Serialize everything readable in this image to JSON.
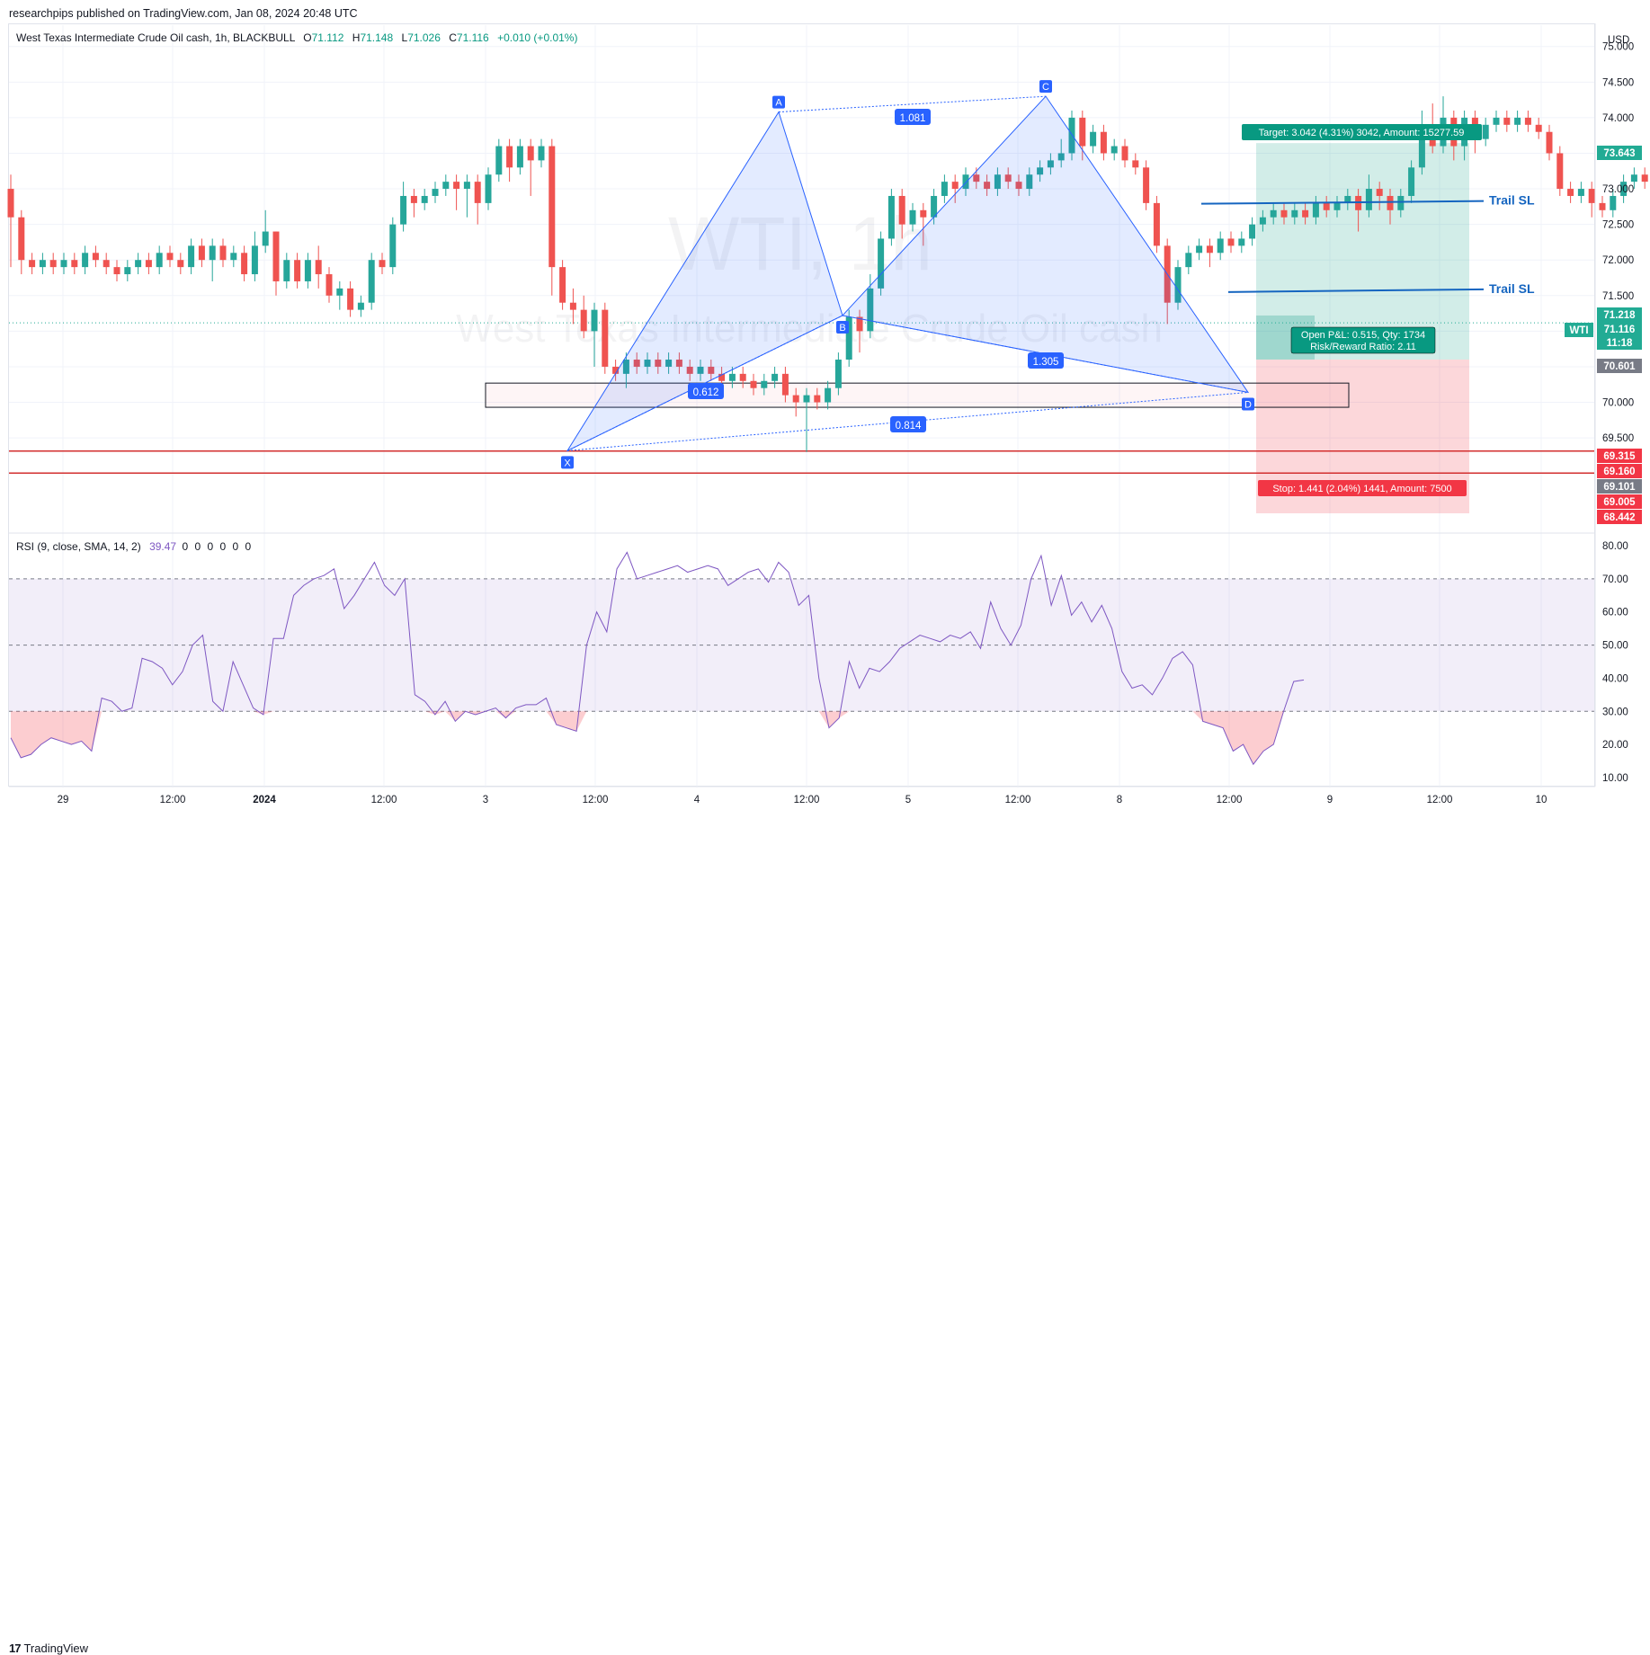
{
  "header": {
    "published": "researchpips published on TradingView.com, Jan 08, 2024 20:48 UTC"
  },
  "legend": {
    "symbol": "West Texas Intermediate Crude Oil cash, 1h, BLACKBULL",
    "o_label": "O",
    "o_value": "71.112",
    "h_label": "H",
    "h_value": "71.148",
    "l_label": "L",
    "l_value": "71.026",
    "c_label": "C",
    "c_value": "71.116",
    "change": "+0.010 (+0.01%)"
  },
  "watermark": {
    "main": "WTI, 1h",
    "sub": "West Texas Intermediate Crude Oil cash"
  },
  "currency": "USD",
  "footer": {
    "brand": "TradingView"
  },
  "chart_data": {
    "type": "candlestick",
    "price_axis": {
      "min": 68.2,
      "max": 75.3,
      "ticks": [
        "75.000",
        "74.500",
        "74.000",
        "73.500",
        "73.000",
        "72.500",
        "72.000",
        "71.500",
        "71.000",
        "70.500",
        "70.000",
        "69.500",
        "69.000"
      ]
    },
    "time_axis": {
      "labels": [
        "29",
        "12:00",
        "2024",
        "12:00",
        "3",
        "12:00",
        "4",
        "12:00",
        "5",
        "12:00",
        "8",
        "12:00",
        "9",
        "12:00",
        "10"
      ]
    },
    "price_badges": [
      {
        "text": "73.643",
        "color": "#22ab94"
      },
      {
        "text": "71.218",
        "color": "#22ab94"
      },
      {
        "text": "WTI",
        "color": "#22ab94"
      },
      {
        "text": "71.116",
        "color": "#22ab94"
      },
      {
        "text": "11:18",
        "color": "#22ab94"
      },
      {
        "text": "70.601",
        "color": "#787b86"
      },
      {
        "text": "69.315",
        "color": "#f23645"
      },
      {
        "text": "69.160",
        "color": "#f23645"
      },
      {
        "text": "69.101",
        "color": "#787b86"
      },
      {
        "text": "69.005",
        "color": "#f23645"
      },
      {
        "text": "68.442",
        "color": "#f23645"
      }
    ],
    "candles": [
      [
        73.0,
        72.6,
        73.2,
        71.9
      ],
      [
        72.6,
        72.0,
        72.7,
        71.8
      ],
      [
        72.0,
        71.9,
        72.1,
        71.8
      ],
      [
        71.9,
        72.0,
        72.1,
        71.8
      ],
      [
        72.0,
        71.9,
        72.1,
        71.8
      ],
      [
        71.9,
        72.0,
        72.1,
        71.8
      ],
      [
        72.0,
        71.9,
        72.1,
        71.8
      ],
      [
        71.9,
        72.1,
        72.2,
        71.8
      ],
      [
        72.1,
        72.0,
        72.2,
        71.9
      ],
      [
        72.0,
        71.9,
        72.1,
        71.8
      ],
      [
        71.9,
        71.8,
        72.0,
        71.7
      ],
      [
        71.8,
        71.9,
        72.0,
        71.7
      ],
      [
        71.9,
        72.0,
        72.1,
        71.8
      ],
      [
        72.0,
        71.9,
        72.1,
        71.8
      ],
      [
        71.9,
        72.1,
        72.2,
        71.8
      ],
      [
        72.1,
        72.0,
        72.2,
        71.9
      ],
      [
        72.0,
        71.9,
        72.1,
        71.8
      ],
      [
        71.9,
        72.2,
        72.3,
        71.8
      ],
      [
        72.2,
        72.0,
        72.3,
        71.9
      ],
      [
        72.0,
        72.2,
        72.3,
        71.7
      ],
      [
        72.2,
        72.0,
        72.3,
        71.9
      ],
      [
        72.0,
        72.1,
        72.2,
        71.9
      ],
      [
        72.1,
        71.8,
        72.2,
        71.7
      ],
      [
        71.8,
        72.2,
        72.4,
        71.7
      ],
      [
        72.2,
        72.4,
        72.7,
        72.1
      ],
      [
        72.4,
        71.7,
        72.4,
        71.5
      ],
      [
        71.7,
        72.0,
        72.1,
        71.6
      ],
      [
        72.0,
        71.7,
        72.1,
        71.6
      ],
      [
        71.7,
        72.0,
        72.1,
        71.6
      ],
      [
        72.0,
        71.8,
        72.2,
        71.6
      ],
      [
        71.8,
        71.5,
        71.9,
        71.4
      ],
      [
        71.5,
        71.6,
        71.7,
        71.3
      ],
      [
        71.6,
        71.3,
        71.7,
        71.2
      ],
      [
        71.3,
        71.4,
        71.5,
        71.2
      ],
      [
        71.4,
        72.0,
        72.1,
        71.3
      ],
      [
        72.0,
        71.9,
        72.1,
        71.8
      ],
      [
        71.9,
        72.5,
        72.6,
        71.8
      ],
      [
        72.5,
        72.9,
        73.1,
        72.4
      ],
      [
        72.9,
        72.8,
        73.0,
        72.6
      ],
      [
        72.8,
        72.9,
        73.0,
        72.7
      ],
      [
        72.9,
        73.0,
        73.1,
        72.8
      ],
      [
        73.0,
        73.1,
        73.2,
        72.9
      ],
      [
        73.1,
        73.0,
        73.2,
        72.7
      ],
      [
        73.0,
        73.1,
        73.2,
        72.6
      ],
      [
        73.1,
        72.8,
        73.2,
        72.5
      ],
      [
        72.8,
        73.2,
        73.3,
        72.7
      ],
      [
        73.2,
        73.6,
        73.7,
        73.1
      ],
      [
        73.6,
        73.3,
        73.7,
        73.1
      ],
      [
        73.3,
        73.6,
        73.7,
        73.2
      ],
      [
        73.6,
        73.4,
        73.7,
        72.9
      ],
      [
        73.4,
        73.6,
        73.7,
        73.3
      ],
      [
        73.6,
        71.9,
        73.7,
        71.5
      ],
      [
        71.9,
        71.4,
        72.0,
        71.3
      ],
      [
        71.4,
        71.3,
        71.6,
        71.1
      ],
      [
        71.3,
        71.0,
        71.5,
        70.9
      ],
      [
        71.0,
        71.3,
        71.4,
        70.5
      ],
      [
        71.3,
        70.5,
        71.4,
        70.4
      ],
      [
        70.5,
        70.4,
        70.6,
        70.3
      ],
      [
        70.4,
        70.6,
        70.7,
        70.2
      ],
      [
        70.6,
        70.5,
        70.7,
        70.4
      ],
      [
        70.5,
        70.6,
        70.7,
        70.4
      ],
      [
        70.6,
        70.5,
        70.7,
        70.4
      ],
      [
        70.5,
        70.6,
        70.7,
        70.4
      ],
      [
        70.6,
        70.5,
        70.7,
        70.4
      ],
      [
        70.5,
        70.4,
        70.6,
        70.3
      ],
      [
        70.4,
        70.5,
        70.6,
        70.3
      ],
      [
        70.5,
        70.4,
        70.6,
        70.3
      ],
      [
        70.4,
        70.3,
        70.5,
        70.2
      ],
      [
        70.3,
        70.4,
        70.5,
        70.2
      ],
      [
        70.4,
        70.3,
        70.5,
        70.2
      ],
      [
        70.3,
        70.2,
        70.4,
        70.1
      ],
      [
        70.2,
        70.3,
        70.4,
        70.1
      ],
      [
        70.3,
        70.4,
        70.5,
        70.2
      ],
      [
        70.4,
        70.1,
        70.5,
        70.0
      ],
      [
        70.1,
        70.0,
        70.2,
        69.8
      ],
      [
        70.0,
        70.1,
        70.2,
        69.3
      ],
      [
        70.1,
        70.0,
        70.2,
        69.9
      ],
      [
        70.0,
        70.2,
        70.3,
        69.9
      ],
      [
        70.2,
        70.6,
        70.7,
        70.1
      ],
      [
        70.6,
        71.2,
        71.3,
        70.5
      ],
      [
        71.2,
        71.0,
        71.3,
        70.7
      ],
      [
        71.0,
        71.6,
        71.8,
        70.9
      ],
      [
        71.6,
        72.3,
        72.4,
        71.5
      ],
      [
        72.3,
        72.9,
        73.0,
        72.2
      ],
      [
        72.9,
        72.5,
        73.0,
        72.3
      ],
      [
        72.5,
        72.7,
        72.8,
        72.4
      ],
      [
        72.7,
        72.6,
        72.8,
        72.2
      ],
      [
        72.6,
        72.9,
        73.0,
        72.5
      ],
      [
        72.9,
        73.1,
        73.2,
        72.8
      ],
      [
        73.1,
        73.0,
        73.2,
        72.8
      ],
      [
        73.0,
        73.2,
        73.3,
        72.9
      ],
      [
        73.2,
        73.1,
        73.3,
        73.0
      ],
      [
        73.1,
        73.0,
        73.2,
        72.9
      ],
      [
        73.0,
        73.2,
        73.3,
        72.9
      ],
      [
        73.2,
        73.1,
        73.3,
        73.0
      ],
      [
        73.1,
        73.0,
        73.2,
        72.9
      ],
      [
        73.0,
        73.2,
        73.3,
        72.9
      ],
      [
        73.2,
        73.3,
        73.4,
        73.1
      ],
      [
        73.3,
        73.4,
        73.5,
        73.2
      ],
      [
        73.4,
        73.5,
        73.7,
        73.3
      ],
      [
        73.5,
        74.0,
        74.1,
        73.4
      ],
      [
        74.0,
        73.6,
        74.1,
        73.4
      ],
      [
        73.6,
        73.8,
        73.9,
        73.5
      ],
      [
        73.8,
        73.5,
        73.9,
        73.4
      ],
      [
        73.5,
        73.6,
        73.7,
        73.4
      ],
      [
        73.6,
        73.4,
        73.7,
        73.3
      ],
      [
        73.4,
        73.3,
        73.5,
        73.2
      ],
      [
        73.3,
        72.8,
        73.4,
        72.7
      ],
      [
        72.8,
        72.2,
        72.9,
        72.1
      ],
      [
        72.2,
        71.4,
        72.3,
        71.1
      ],
      [
        71.4,
        71.9,
        72.0,
        71.3
      ],
      [
        71.9,
        72.1,
        72.2,
        71.8
      ],
      [
        72.1,
        72.2,
        72.3,
        72.0
      ],
      [
        72.2,
        72.1,
        72.3,
        71.9
      ],
      [
        72.1,
        72.3,
        72.4,
        72.0
      ],
      [
        72.3,
        72.2,
        72.4,
        72.1
      ],
      [
        72.2,
        72.3,
        72.4,
        72.1
      ],
      [
        72.3,
        72.5,
        72.6,
        72.2
      ],
      [
        72.5,
        72.6,
        72.7,
        72.4
      ],
      [
        72.6,
        72.7,
        72.8,
        72.5
      ],
      [
        72.7,
        72.6,
        72.8,
        72.5
      ],
      [
        72.6,
        72.7,
        72.8,
        72.5
      ],
      [
        72.7,
        72.6,
        72.8,
        72.5
      ],
      [
        72.6,
        72.8,
        72.9,
        72.5
      ],
      [
        72.8,
        72.7,
        72.9,
        72.6
      ],
      [
        72.7,
        72.8,
        72.9,
        72.6
      ],
      [
        72.8,
        72.9,
        73.0,
        72.7
      ],
      [
        72.9,
        72.7,
        73.0,
        72.4
      ],
      [
        72.7,
        73.0,
        73.2,
        72.6
      ],
      [
        73.0,
        72.9,
        73.1,
        72.7
      ],
      [
        72.9,
        72.7,
        73.0,
        72.5
      ],
      [
        72.7,
        72.9,
        73.0,
        72.6
      ],
      [
        72.9,
        73.3,
        73.4,
        72.8
      ],
      [
        73.3,
        73.9,
        74.1,
        73.2
      ],
      [
        73.9,
        73.6,
        74.2,
        73.5
      ],
      [
        73.6,
        74.0,
        74.3,
        73.5
      ],
      [
        74.0,
        73.6,
        74.1,
        73.4
      ],
      [
        73.6,
        74.0,
        74.1,
        73.4
      ],
      [
        74.0,
        73.7,
        74.1,
        73.5
      ],
      [
        73.7,
        73.9,
        74.0,
        73.6
      ],
      [
        73.9,
        74.0,
        74.1,
        73.8
      ],
      [
        74.0,
        73.9,
        74.1,
        73.8
      ],
      [
        73.9,
        74.0,
        74.1,
        73.8
      ],
      [
        74.0,
        73.9,
        74.1,
        73.8
      ],
      [
        73.9,
        73.8,
        74.0,
        73.7
      ],
      [
        73.8,
        73.5,
        73.9,
        73.4
      ],
      [
        73.5,
        73.0,
        73.6,
        72.9
      ],
      [
        73.0,
        72.9,
        73.1,
        72.8
      ],
      [
        72.9,
        73.0,
        73.1,
        72.8
      ],
      [
        73.0,
        72.8,
        73.1,
        72.6
      ],
      [
        72.8,
        72.7,
        72.9,
        72.6
      ],
      [
        72.7,
        72.9,
        73.0,
        72.6
      ],
      [
        72.9,
        73.1,
        73.2,
        72.8
      ],
      [
        73.1,
        73.2,
        73.3,
        73.0
      ],
      [
        73.2,
        73.1,
        73.3,
        73.0
      ],
      [
        73.1,
        72.9,
        73.2,
        72.8
      ],
      [
        72.9,
        72.7,
        73.0,
        72.6
      ],
      [
        72.7,
        72.0,
        72.8,
        71.8
      ],
      [
        72.0,
        71.9,
        72.1,
        71.7
      ],
      [
        71.9,
        72.0,
        72.1,
        71.8
      ],
      [
        72.0,
        71.1,
        72.1,
        70.8
      ],
      [
        71.1,
        70.3,
        71.2,
        70.2
      ],
      [
        70.3,
        70.8,
        70.9,
        70.2
      ],
      [
        70.8,
        70.6,
        70.9,
        70.4
      ],
      [
        70.6,
        70.5,
        70.8,
        70.4
      ],
      [
        70.5,
        70.7,
        70.8,
        70.4
      ],
      [
        70.7,
        71.1,
        71.2,
        70.6
      ]
    ],
    "rsi": {
      "label": "RSI (9, close, SMA, 14, 2)",
      "value": "39.47",
      "zeros": "0 0 0 0 0 0",
      "ticks": [
        "80.00",
        "70.00",
        "60.00",
        "50.00",
        "40.00",
        "30.00",
        "20.00",
        "10.00"
      ],
      "min": 7,
      "max": 83,
      "series": [
        22,
        16,
        17,
        20,
        22,
        21,
        20,
        21,
        18,
        34,
        33,
        30,
        31,
        46,
        45,
        43,
        38,
        42,
        50,
        53,
        33,
        30,
        45,
        38,
        31,
        29,
        52,
        52,
        65,
        68,
        70,
        71,
        73,
        61,
        65,
        70,
        75,
        68,
        65,
        70,
        35,
        33,
        29,
        33,
        27,
        30,
        29,
        30,
        31,
        28,
        31,
        32,
        32,
        34,
        26,
        25,
        24,
        50,
        60,
        54,
        73,
        78,
        70,
        71,
        72,
        73,
        74,
        72,
        73,
        74,
        73,
        68,
        70,
        72,
        73,
        69,
        75,
        72,
        62,
        65,
        40,
        25,
        28,
        45,
        37,
        43,
        42,
        45,
        49,
        51,
        53,
        52,
        51,
        53,
        52,
        54,
        49,
        63,
        55,
        50,
        56,
        70,
        77,
        62,
        71,
        59,
        63,
        57,
        62,
        55,
        42,
        37,
        38,
        35,
        40,
        46,
        48,
        44,
        27,
        26,
        25,
        18,
        20,
        14,
        18,
        20,
        30,
        39,
        39.47
      ]
    },
    "harmonic": {
      "points": [
        {
          "label": "X",
          "price": 69.32
        },
        {
          "label": "A",
          "price": 74.08
        },
        {
          "label": "B",
          "price": 71.22
        },
        {
          "label": "C",
          "price": 74.3
        },
        {
          "label": "D",
          "price": 70.14
        }
      ],
      "ratios": [
        "1.081",
        "0.612",
        "1.305",
        "0.814"
      ]
    },
    "lines": {
      "trail_sl": "Trail SL",
      "red_1": 69.315,
      "red_2": 69.005
    },
    "position": {
      "target": "Target: 3.042 (4.31%) 3042, Amount: 15277.59",
      "stop": "Stop: 1.441 (2.04%) 1441, Amount: 7500",
      "open_pl": "Open P&L: 0.515, Qty: 1734",
      "risk_reward": "Risk/Reward Ratio: 2.11",
      "entry": 70.601,
      "target_price": 73.643,
      "stop_price": 69.16
    }
  }
}
